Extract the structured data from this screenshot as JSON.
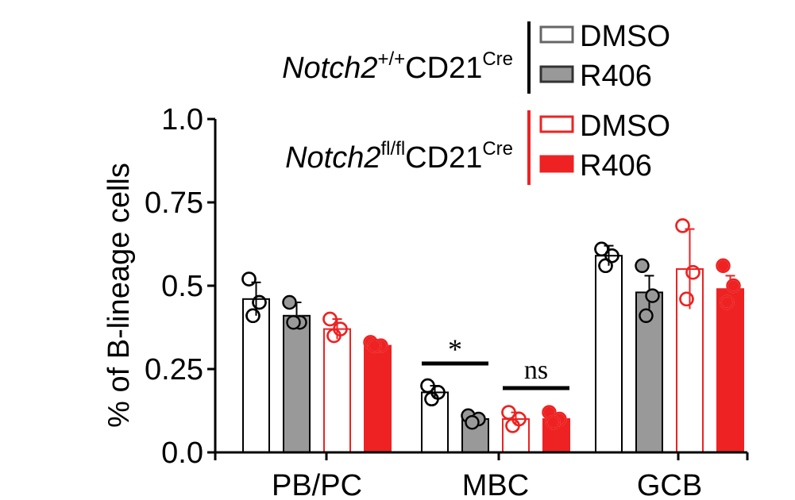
{
  "chart_data": {
    "type": "bar",
    "ylabel": "% of B-lineage cells",
    "ylim": [
      0,
      1.0
    ],
    "yticks": [
      "0.0",
      "0.25",
      "0.5",
      "0.75",
      "1.0"
    ],
    "ytick_values": [
      0,
      0.25,
      0.5,
      0.75,
      1.0
    ],
    "categories": [
      "PB/PC",
      "MBC",
      "GCB"
    ],
    "groups": [
      {
        "genotype_prefix": "Notch2",
        "genotype_sup": "+/+",
        "genotype_suffix": "CD21",
        "genotype_suffix_sup": "Cre",
        "color": "#666666"
      },
      {
        "genotype_prefix": "Notch2",
        "genotype_sup": "fl/fl",
        "genotype_suffix": "CD21",
        "genotype_suffix_sup": "Cre",
        "color": "#ee2222"
      }
    ],
    "series": [
      {
        "name": "DMSO",
        "group": 0,
        "fill": "#ffffff",
        "stroke": "#000000",
        "legend_fill": "#ffffff",
        "legend_stroke": "#666666",
        "values": [
          0.46,
          0.18,
          0.59
        ],
        "errors": [
          0.05,
          0.02,
          0.03
        ],
        "points": [
          [
            0.52,
            0.45,
            0.41
          ],
          [
            0.2,
            0.18,
            0.16
          ],
          [
            0.61,
            0.59,
            0.56
          ]
        ]
      },
      {
        "name": "R406",
        "group": 0,
        "fill": "#999999",
        "stroke": "#000000",
        "legend_fill": "#999999",
        "legend_stroke": "#333333",
        "values": [
          0.41,
          0.1,
          0.48
        ],
        "errors": [
          0.04,
          0.01,
          0.05
        ],
        "points": [
          [
            0.45,
            0.39,
            0.39
          ],
          [
            0.11,
            0.1,
            0.09
          ],
          [
            0.56,
            0.47,
            0.41
          ]
        ]
      },
      {
        "name": "DMSO",
        "group": 1,
        "fill": "#ffffff",
        "stroke": "#ee2222",
        "legend_fill": "#ffffff",
        "legend_stroke": "#ee2222",
        "values": [
          0.37,
          0.1,
          0.55
        ],
        "errors": [
          0.03,
          0.02,
          0.12
        ],
        "points": [
          [
            0.4,
            0.37,
            0.35
          ],
          [
            0.12,
            0.1,
            0.08
          ],
          [
            0.68,
            0.54,
            0.46
          ]
        ]
      },
      {
        "name": "R406",
        "group": 1,
        "fill": "#ee2222",
        "stroke": "#ee2222",
        "legend_fill": "#ee2222",
        "legend_stroke": "#ee2222",
        "values": [
          0.32,
          0.1,
          0.49
        ],
        "errors": [
          0.01,
          0.01,
          0.04
        ],
        "points": [
          [
            0.33,
            0.32,
            0.32
          ],
          [
            0.12,
            0.1,
            0.09
          ],
          [
            0.56,
            0.5,
            0.45
          ]
        ]
      }
    ],
    "annotations": [
      {
        "category": 1,
        "from_series": 0,
        "to_series": 1,
        "label": "*"
      },
      {
        "category": 1,
        "from_series": 2,
        "to_series": 3,
        "label": "ns"
      }
    ]
  }
}
